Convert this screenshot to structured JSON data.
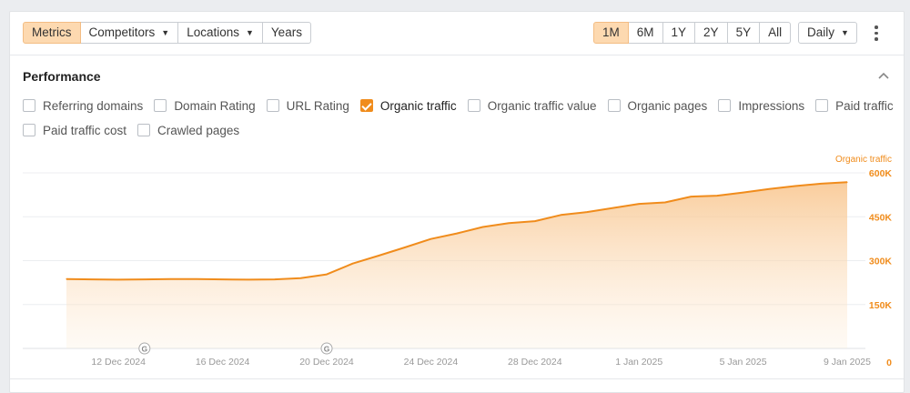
{
  "toolbar": {
    "left_group": [
      {
        "label": "Metrics",
        "active": true,
        "dropdown": false
      },
      {
        "label": "Competitors",
        "active": false,
        "dropdown": true
      },
      {
        "label": "Locations",
        "active": false,
        "dropdown": true
      },
      {
        "label": "Years",
        "active": false,
        "dropdown": false
      }
    ],
    "range_group": [
      {
        "label": "1M",
        "active": true
      },
      {
        "label": "6M",
        "active": false
      },
      {
        "label": "1Y",
        "active": false
      },
      {
        "label": "2Y",
        "active": false
      },
      {
        "label": "5Y",
        "active": false
      },
      {
        "label": "All",
        "active": false
      }
    ],
    "interval": {
      "label": "Daily"
    },
    "more_icon": "kebab-icon"
  },
  "performance": {
    "title": "Performance",
    "collapse_icon": "chevron-up-icon",
    "metrics_row1": [
      {
        "label": "Referring domains",
        "checked": false
      },
      {
        "label": "Domain Rating",
        "checked": false
      },
      {
        "label": "URL Rating",
        "checked": false
      },
      {
        "label": "Organic traffic",
        "checked": true
      },
      {
        "label": "Organic traffic value",
        "checked": false
      },
      {
        "label": "Organic pages",
        "checked": false
      },
      {
        "label": "Impressions",
        "checked": false
      },
      {
        "label": "Paid traffic",
        "checked": false
      }
    ],
    "metrics_row2": [
      {
        "label": "Paid traffic cost",
        "checked": false
      },
      {
        "label": "Crawled pages",
        "checked": false
      }
    ]
  },
  "colors": {
    "accent": "#f08c1c",
    "active_bg": "#fdd9b0",
    "axis_text": "#999999"
  },
  "chart_data": {
    "type": "area",
    "series": [
      {
        "name": "Organic traffic",
        "color": "#f08c1c",
        "values": [
          237,
          236,
          235,
          236,
          237,
          237,
          236,
          235,
          236,
          240,
          253,
          290,
          317,
          345,
          374,
          393,
          415,
          428,
          435,
          456,
          466,
          480,
          494,
          499,
          519,
          522,
          533,
          545,
          555,
          563,
          568
        ]
      }
    ],
    "x": [
      "2024-12-10",
      "2024-12-11",
      "2024-12-12",
      "2024-12-13",
      "2024-12-14",
      "2024-12-15",
      "2024-12-16",
      "2024-12-17",
      "2024-12-18",
      "2024-12-19",
      "2024-12-20",
      "2024-12-21",
      "2024-12-22",
      "2024-12-23",
      "2024-12-24",
      "2024-12-25",
      "2024-12-26",
      "2024-12-27",
      "2024-12-28",
      "2024-12-29",
      "2024-12-30",
      "2024-12-31",
      "2025-01-01",
      "2025-01-02",
      "2025-01-03",
      "2025-01-04",
      "2025-01-05",
      "2025-01-06",
      "2025-01-07",
      "2025-01-08",
      "2025-01-09"
    ],
    "value_unit": "thousands",
    "x_tick_labels": [
      "12 Dec 2024",
      "16 Dec 2024",
      "20 Dec 2024",
      "24 Dec 2024",
      "28 Dec 2024",
      "1 Jan 2025",
      "5 Jan 2025",
      "9 Jan 2025"
    ],
    "y_tick_labels": [
      "0",
      "150K",
      "300K",
      "450K",
      "600K"
    ],
    "ylim": [
      0,
      600
    ],
    "y_axis_title": "Organic traffic",
    "annotations": [
      {
        "x": "2024-12-13",
        "label": "G"
      },
      {
        "x": "2024-12-20",
        "label": "G"
      }
    ],
    "grid": true
  }
}
